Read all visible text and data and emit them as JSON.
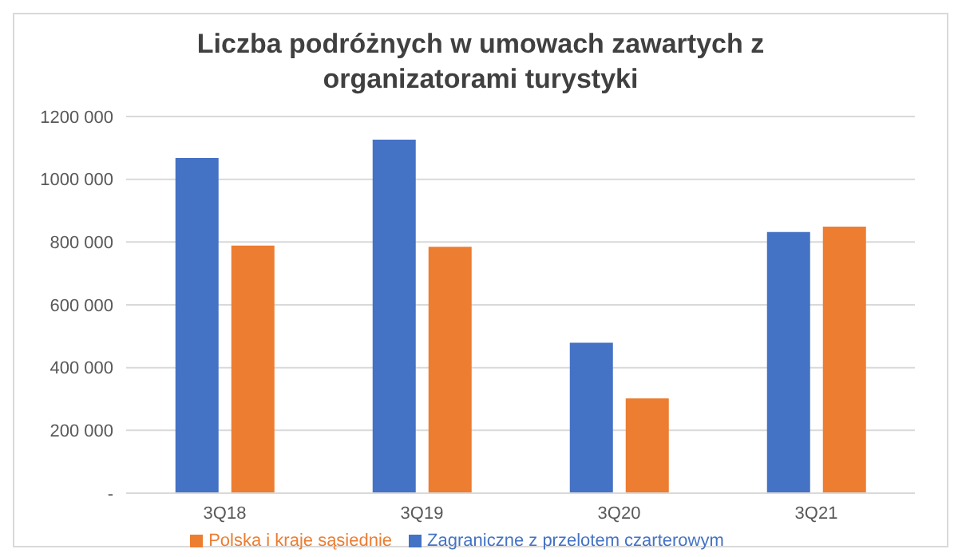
{
  "chart_data": {
    "type": "bar",
    "title": "Liczba podróżnych w umowach zawartych z organizatorami turystyki",
    "categories": [
      "3Q18",
      "3Q19",
      "3Q20",
      "3Q21"
    ],
    "series": [
      {
        "name": "Zagraniczne z przelotem czarterowym",
        "color": "#4472c4",
        "values": [
          1068000,
          1126000,
          479000,
          832000
        ]
      },
      {
        "name": "Polska i kraje sąsiednie",
        "color": "#ed7d31",
        "values": [
          789000,
          785000,
          302000,
          849000
        ]
      }
    ],
    "ylim": [
      0,
      1200000
    ],
    "yticks": [
      {
        "value": 0,
        "label": "-"
      },
      {
        "value": 200000,
        "label": "200 000"
      },
      {
        "value": 400000,
        "label": "400 000"
      },
      {
        "value": 600000,
        "label": "600 000"
      },
      {
        "value": 800000,
        "label": "800 000"
      },
      {
        "value": 1000000,
        "label": "1000 000"
      },
      {
        "value": 1200000,
        "label": "1200 000"
      }
    ],
    "grid": "y",
    "legend": "bottom"
  }
}
